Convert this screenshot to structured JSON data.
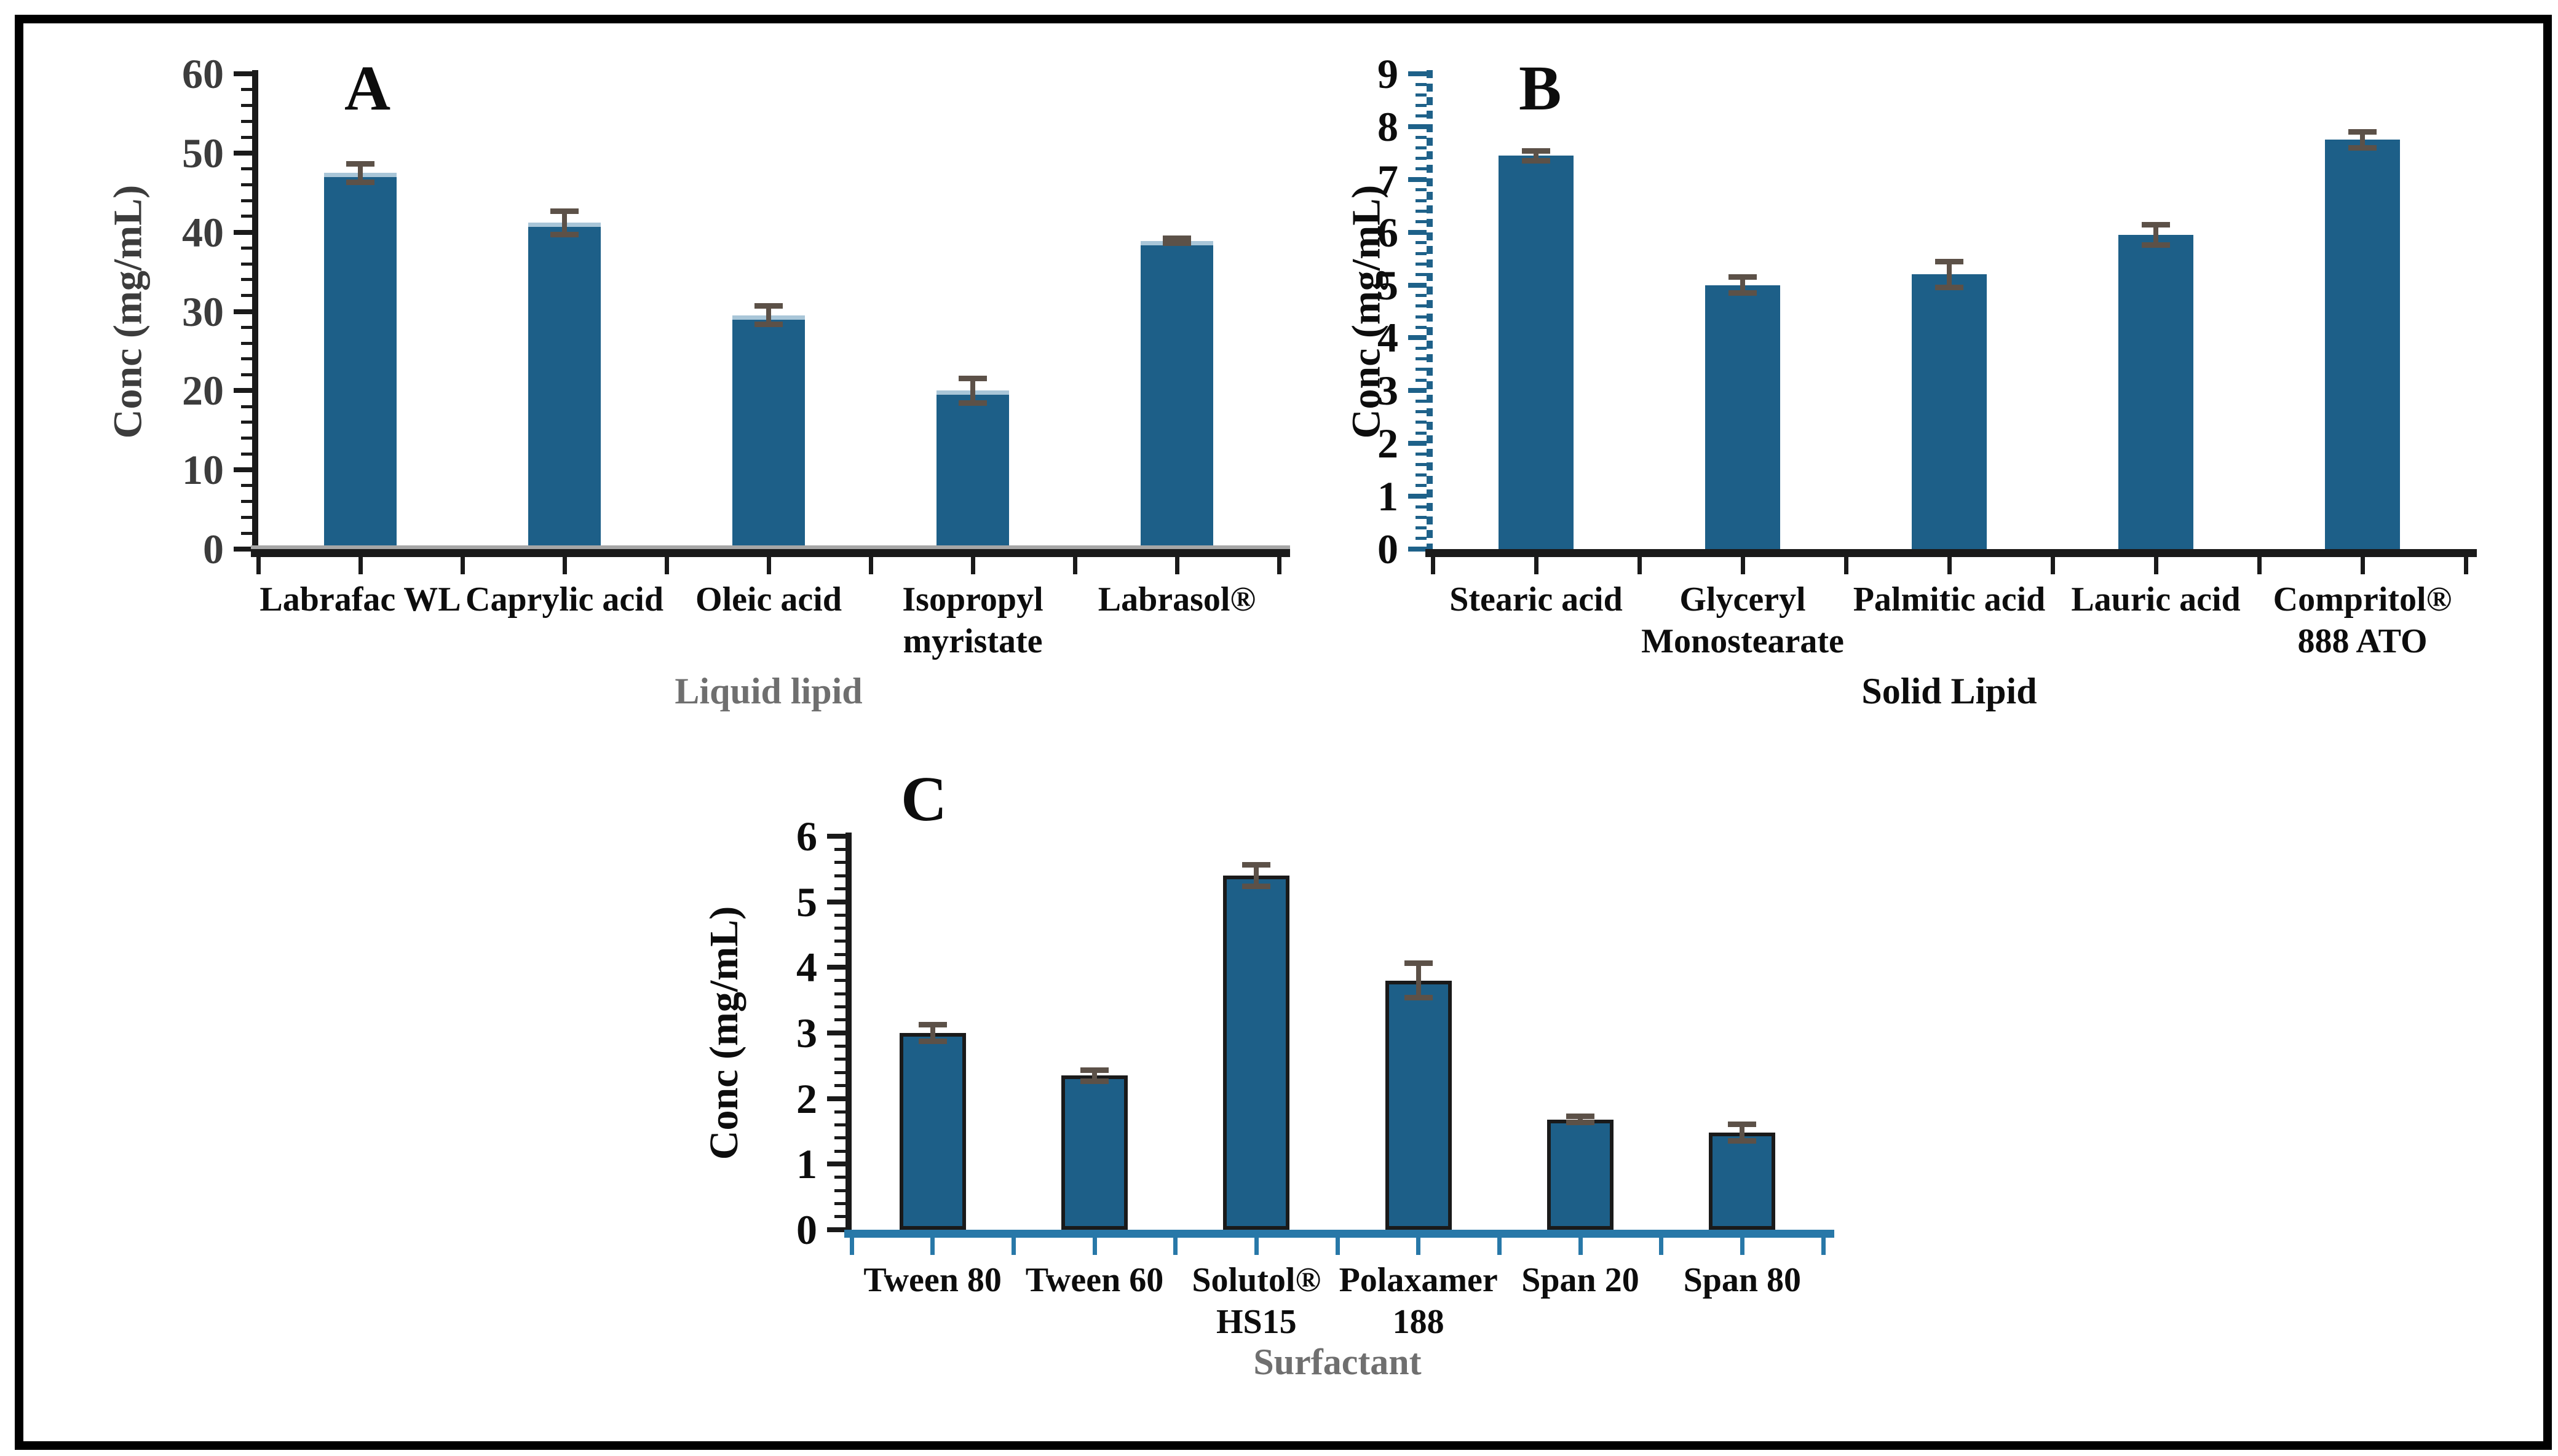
{
  "figure": {
    "kind": "three-panel solubility bar figure",
    "panels": [
      "A",
      "B",
      "C"
    ],
    "background": "#ffffff",
    "border_color": "#000000"
  },
  "colors": {
    "bar_fill": "#1d5f88",
    "bar_top_highlight": "#a9c6d8",
    "bar_border_dark": "#1a1a1a",
    "error_bar": "#5c5148",
    "axis_black": "#1a1a1a",
    "axis_teal": "#1e6189",
    "axis_teal_light": "#2878a8",
    "axis_gray_shadow": "#a6a6a6",
    "gray_label": "#6f6f6f",
    "dark_gray_label": "#3c3c3c",
    "black_label": "#0d0d0d"
  },
  "chart_data": [
    {
      "type": "bar",
      "panel_label": "A",
      "title": "",
      "ylabel": "Conc (mg/mL)",
      "xlabel": "Liquid lipid",
      "ylim": [
        0,
        60
      ],
      "ytick_step": 10,
      "yminor_step": 2,
      "yticks": [
        0,
        10,
        20,
        30,
        40,
        50,
        60
      ],
      "grid": false,
      "legend": "none",
      "categories": [
        [
          "Labrafac WL"
        ],
        [
          "Caprylic acid"
        ],
        [
          "Oleic acid"
        ],
        [
          "Isopropyl",
          "myristate"
        ],
        [
          "Labrasol®"
        ]
      ],
      "values": [
        47.5,
        41.2,
        29.5,
        20.0,
        38.9
      ],
      "errors": [
        1.2,
        1.5,
        1.2,
        1.6,
        0.35
      ],
      "style": {
        "y_axis_color": "#1a1a1a",
        "y_axis_dashed": false,
        "x_axis_color": "#1a1a1a",
        "x_axis_gray_shadow": true,
        "x_tick_color": "#1a1a1a",
        "tick_label_color": "#3c3c3c",
        "ylabel_color": "#3c3c3c",
        "xlabel_color": "#6f6f6f",
        "category_color": "#0d0d0d",
        "bar_border": "none",
        "bar_top_highlight": "#a9c6d8"
      }
    },
    {
      "type": "bar",
      "panel_label": "B",
      "title": "",
      "ylabel": "Conc (mg/mL)",
      "xlabel": "Solid Lipid",
      "ylim": [
        0,
        9
      ],
      "ytick_step": 1,
      "yminor_step": 0.2,
      "yticks": [
        0,
        1,
        2,
        3,
        4,
        5,
        6,
        7,
        8,
        9
      ],
      "grid": false,
      "legend": "none",
      "categories": [
        [
          "Stearic acid"
        ],
        [
          "Glyceryl",
          "Monostearate"
        ],
        [
          "Palmitic acid"
        ],
        [
          "Lauric acid"
        ],
        [
          "Compritol®",
          "888 ATO"
        ]
      ],
      "values": [
        7.45,
        5.0,
        5.2,
        5.95,
        7.75
      ],
      "errors": [
        0.1,
        0.16,
        0.25,
        0.2,
        0.16
      ],
      "style": {
        "y_axis_color": "#1e6189",
        "y_axis_dashed": true,
        "x_axis_color": "#1a1a1a",
        "x_axis_gray_shadow": false,
        "x_tick_color": "#1a1a1a",
        "tick_label_color": "#0d0d0d",
        "ylabel_color": "#0d0d0d",
        "xlabel_color": "#0d0d0d",
        "category_color": "#0d0d0d",
        "bar_border": "none",
        "bar_top_highlight": ""
      }
    },
    {
      "type": "bar",
      "panel_label": "C",
      "title": "",
      "ylabel": "Conc (mg/mL)",
      "xlabel": "Surfactant",
      "ylim": [
        0,
        6
      ],
      "ytick_step": 1,
      "yminor_step": 0.2,
      "yticks": [
        0,
        1,
        2,
        3,
        4,
        5,
        6
      ],
      "grid": false,
      "legend": "none",
      "categories": [
        [
          "Tween 80"
        ],
        [
          "Tween 60"
        ],
        [
          "Solutol®",
          "HS15"
        ],
        [
          "Polaxamer",
          "188"
        ],
        [
          "Span 20"
        ],
        [
          "Span 80"
        ]
      ],
      "values": [
        3.0,
        2.35,
        5.4,
        3.8,
        1.68,
        1.48
      ],
      "errors": [
        0.13,
        0.09,
        0.17,
        0.27,
        0.05,
        0.13
      ],
      "style": {
        "y_axis_color": "#1a1a1a",
        "y_axis_dashed": false,
        "x_axis_color": "#2878a8",
        "x_axis_gray_shadow": false,
        "x_tick_color": "#2878a8",
        "tick_label_color": "#0d0d0d",
        "ylabel_color": "#0d0d0d",
        "xlabel_color": "#6f6f6f",
        "category_color": "#0d0d0d",
        "bar_border": "#1a1a1a",
        "bar_top_highlight": ""
      }
    }
  ]
}
